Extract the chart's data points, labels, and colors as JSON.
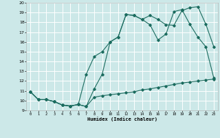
{
  "bg_color": "#cce8e8",
  "grid_color": "#ffffff",
  "line_color": "#1a6b5e",
  "xlabel": "Humidex (Indice chaleur)",
  "xlim": [
    -0.5,
    23.5
  ],
  "ylim": [
    9,
    20
  ],
  "xticks": [
    0,
    1,
    2,
    3,
    4,
    5,
    6,
    7,
    8,
    9,
    10,
    11,
    12,
    13,
    14,
    15,
    16,
    17,
    18,
    19,
    20,
    21,
    22,
    23
  ],
  "yticks": [
    9,
    10,
    11,
    12,
    13,
    14,
    15,
    16,
    17,
    18,
    19,
    20
  ],
  "line1_x": [
    0,
    1,
    2,
    3,
    4,
    5,
    6,
    7,
    8,
    9,
    10,
    11,
    12,
    13,
    14,
    15,
    16,
    17,
    18,
    19,
    20,
    21,
    22,
    23
  ],
  "line1_y": [
    10.9,
    10.1,
    10.1,
    9.9,
    9.55,
    9.45,
    9.6,
    9.4,
    10.35,
    10.5,
    10.6,
    10.7,
    10.8,
    10.9,
    11.1,
    11.2,
    11.35,
    11.5,
    11.65,
    11.8,
    11.9,
    12.0,
    12.1,
    12.2
  ],
  "line2_x": [
    0,
    1,
    2,
    3,
    4,
    5,
    6,
    7,
    8,
    9,
    10,
    11,
    12,
    13,
    14,
    15,
    16,
    17,
    18,
    19,
    20,
    21,
    22,
    23
  ],
  "line2_y": [
    10.9,
    10.1,
    10.1,
    9.9,
    9.55,
    9.45,
    9.6,
    12.7,
    14.5,
    15.0,
    16.0,
    16.5,
    18.8,
    18.7,
    18.3,
    18.7,
    18.3,
    17.75,
    17.7,
    19.2,
    19.5,
    19.6,
    17.8,
    15.5
  ],
  "line3_x": [
    0,
    1,
    2,
    3,
    4,
    5,
    6,
    7,
    8,
    9,
    10,
    11,
    12,
    13,
    14,
    15,
    16,
    17,
    18,
    19,
    20,
    21,
    22,
    23
  ],
  "line3_y": [
    10.9,
    10.1,
    10.1,
    9.9,
    9.55,
    9.45,
    9.6,
    9.4,
    11.2,
    12.7,
    16.0,
    16.5,
    18.8,
    18.7,
    18.3,
    17.75,
    16.2,
    16.8,
    19.1,
    19.3,
    17.8,
    16.5,
    15.5,
    12.3
  ]
}
